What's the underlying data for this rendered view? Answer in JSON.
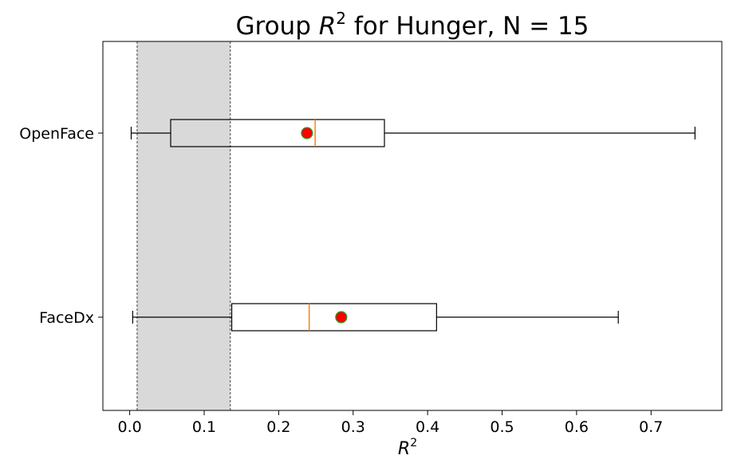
{
  "chart_data": {
    "type": "boxplot",
    "orientation": "horizontal",
    "title_prefix": "Group ",
    "title_symbol": "R",
    "title_superscript": "2",
    "title_suffix": " for Hunger, N = 15",
    "xlabel_symbol": "R",
    "xlabel_superscript": "2",
    "xlim": [
      -0.036,
      0.795
    ],
    "xticks": [
      0.0,
      0.1,
      0.2,
      0.3,
      0.4,
      0.5,
      0.6,
      0.7
    ],
    "xtick_labels": [
      "0.0",
      "0.1",
      "0.2",
      "0.3",
      "0.4",
      "0.5",
      "0.6",
      "0.7"
    ],
    "shaded_band": [
      0.01,
      0.135
    ],
    "grid": false,
    "series": [
      {
        "label": "OpenFace",
        "whisker_low": 0.002,
        "q1": 0.055,
        "median": 0.249,
        "q3": 0.342,
        "whisker_high": 0.759,
        "mean": 0.238
      },
      {
        "label": "FaceDx",
        "whisker_low": 0.004,
        "q1": 0.137,
        "median": 0.241,
        "q3": 0.412,
        "whisker_high": 0.656,
        "mean": 0.284
      }
    ],
    "colors": {
      "box": "#000000",
      "median": "#ff7f0e",
      "mean_fill": "#ff0000",
      "mean_edge": "#2ca02c",
      "band_fill": "#d9d9d9",
      "band_edge": "#777777"
    }
  }
}
